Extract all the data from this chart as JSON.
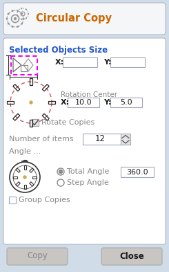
{
  "bg_color": "#d0dce8",
  "panel_color": "#f8f8f8",
  "panel_border": "#b0b8c8",
  "title": "Circular Copy",
  "section_title": "Selected Objects Size",
  "rotation_center_label": "Rotation Center",
  "x_label": "X:",
  "y_label": "Y:",
  "rot_x_val": "10.0",
  "rot_y_val": "5.0",
  "rotate_copies_label": "Rotate Copies",
  "number_items_label": "Number of items",
  "number_items_val": "12",
  "angle_label": "Angle ...",
  "total_angle_label": "Total Angle",
  "step_angle_label": "Step Angle",
  "angle_val": "360.0",
  "group_copies_label": "Group Copies",
  "copy_btn": "Copy",
  "close_btn": "Close",
  "magenta": "#ee00ee",
  "red_circle": "#cc5555",
  "dark": "#1a1a1a",
  "gray": "#888888",
  "light_gray": "#c8c8c8",
  "btn_color": "#c8c5c2",
  "input_border": "#a0a8b8",
  "input_bg": "#ffffff",
  "text_blue": "#2255cc",
  "title_orange": "#cc6600"
}
